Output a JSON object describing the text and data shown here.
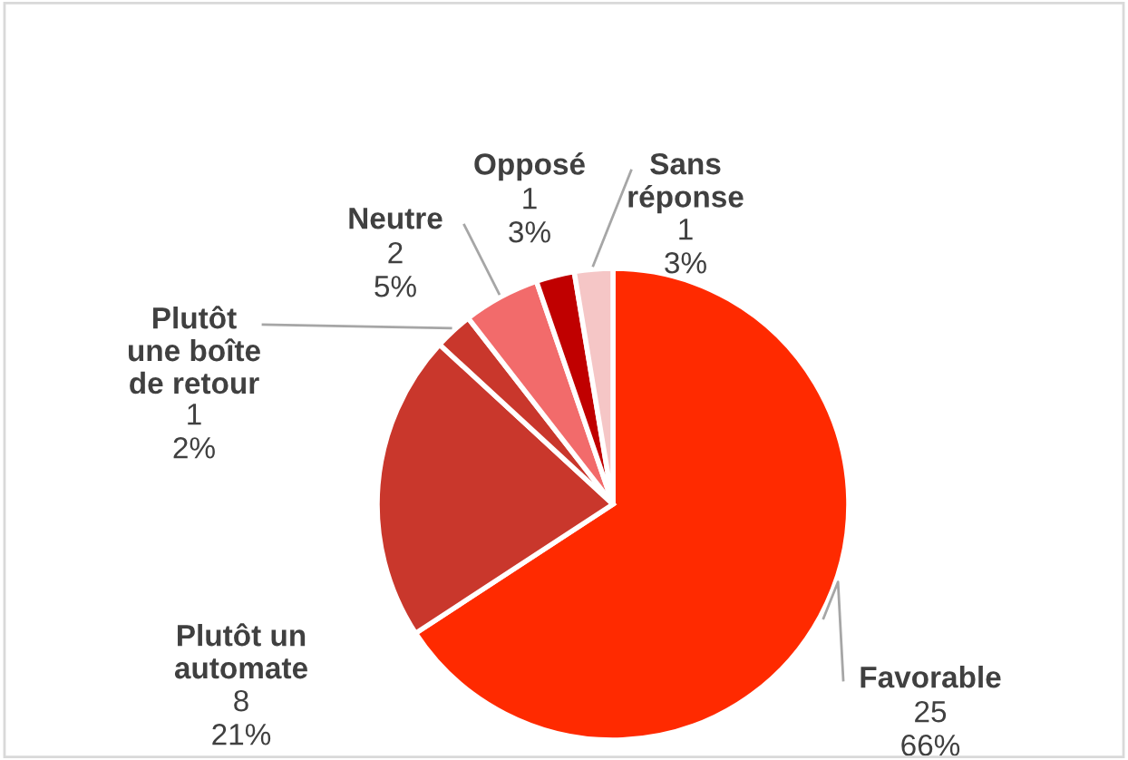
{
  "chart_data": {
    "type": "pie",
    "categories": [
      "Favorable",
      "Plutôt un automate",
      "Plutôt une boîte de retour",
      "Neutre",
      "Opposé",
      "Sans réponse"
    ],
    "values": [
      25,
      8,
      1,
      2,
      1,
      1
    ],
    "value_labels": [
      "25\n66%",
      "8\n21%",
      "1\n2%",
      "2\n5%",
      "1\n3%",
      "1\n3%"
    ],
    "colors": [
      "#ff2a00",
      "#c9372c",
      "#c9372c",
      "#f26b6b",
      "#c00000",
      "#f5c6c6"
    ],
    "legend": false
  }
}
